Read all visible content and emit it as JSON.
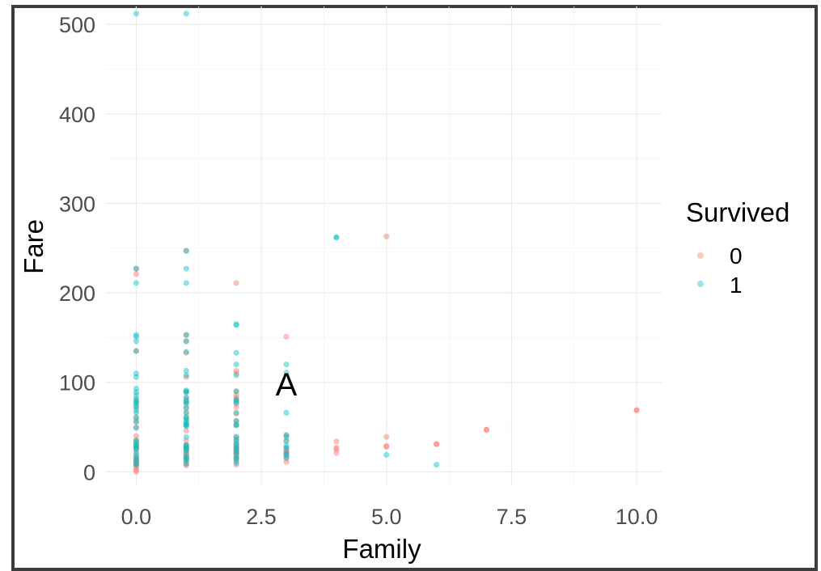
{
  "chart_data": {
    "type": "scatter",
    "xlabel": "Family",
    "ylabel": "Fare",
    "xlim": [
      -0.75,
      10.5
    ],
    "ylim": [
      -15,
      520
    ],
    "x_ticks": [
      0.0,
      2.5,
      5.0,
      7.5,
      10.0
    ],
    "x_tick_labels": [
      "0.0",
      "2.5",
      "5.0",
      "7.5",
      "10.0"
    ],
    "y_ticks": [
      0,
      100,
      200,
      300,
      400,
      500
    ],
    "y_tick_labels": [
      "0",
      "100",
      "200",
      "300",
      "400",
      "500"
    ],
    "grid": true,
    "legend": {
      "title": "Survived",
      "placement": "right",
      "entries": [
        "0",
        "1"
      ]
    },
    "colors": {
      "0": "#F8766D",
      "1": "#00BFC4"
    },
    "annotation": {
      "text": "A",
      "x": 3.0,
      "y": 98
    },
    "series": [
      {
        "name": "0",
        "points": [
          [
            0,
            0
          ],
          [
            0,
            2
          ],
          [
            0,
            5
          ],
          [
            0,
            7
          ],
          [
            0,
            8
          ],
          [
            0,
            10
          ],
          [
            0,
            12
          ],
          [
            0,
            14
          ],
          [
            0,
            16
          ],
          [
            0,
            20
          ],
          [
            0,
            25
          ],
          [
            0,
            28
          ],
          [
            0,
            31
          ],
          [
            0,
            35
          ],
          [
            0,
            40
          ],
          [
            0,
            50
          ],
          [
            0,
            56
          ],
          [
            0,
            61
          ],
          [
            0,
            73
          ],
          [
            0,
            80
          ],
          [
            0,
            135
          ],
          [
            0,
            221
          ],
          [
            0,
            227
          ],
          [
            1,
            7
          ],
          [
            1,
            9
          ],
          [
            1,
            12
          ],
          [
            1,
            14
          ],
          [
            1,
            16
          ],
          [
            1,
            18
          ],
          [
            1,
            20
          ],
          [
            1,
            22
          ],
          [
            1,
            24
          ],
          [
            1,
            26
          ],
          [
            1,
            27
          ],
          [
            1,
            30
          ],
          [
            1,
            35
          ],
          [
            1,
            46
          ],
          [
            1,
            53
          ],
          [
            1,
            61
          ],
          [
            1,
            66
          ],
          [
            1,
            72
          ],
          [
            1,
            78
          ],
          [
            1,
            83
          ],
          [
            1,
            89
          ],
          [
            1,
            106
          ],
          [
            1,
            133
          ],
          [
            1,
            146
          ],
          [
            1,
            153
          ],
          [
            1,
            247
          ],
          [
            2,
            8
          ],
          [
            2,
            12
          ],
          [
            2,
            15
          ],
          [
            2,
            18
          ],
          [
            2,
            20
          ],
          [
            2,
            21
          ],
          [
            2,
            23
          ],
          [
            2,
            24
          ],
          [
            2,
            26
          ],
          [
            2,
            29
          ],
          [
            2,
            31
          ],
          [
            2,
            35
          ],
          [
            2,
            39
          ],
          [
            2,
            52
          ],
          [
            2,
            57
          ],
          [
            2,
            65
          ],
          [
            2,
            72
          ],
          [
            2,
            76
          ],
          [
            2,
            80
          ],
          [
            2,
            83
          ],
          [
            2,
            86
          ],
          [
            2,
            90
          ],
          [
            2,
            110
          ],
          [
            2,
            113
          ],
          [
            2,
            211
          ],
          [
            3,
            11
          ],
          [
            3,
            15
          ],
          [
            3,
            18
          ],
          [
            3,
            21
          ],
          [
            3,
            22
          ],
          [
            3,
            24
          ],
          [
            3,
            26
          ],
          [
            3,
            35
          ],
          [
            3,
            41
          ],
          [
            3,
            151
          ],
          [
            4,
            21
          ],
          [
            4,
            25
          ],
          [
            4,
            27
          ],
          [
            4,
            34
          ],
          [
            5,
            28
          ],
          [
            5,
            29
          ],
          [
            5,
            39
          ],
          [
            5,
            263
          ],
          [
            6,
            31
          ],
          [
            6,
            31
          ],
          [
            7,
            47
          ],
          [
            7,
            47
          ],
          [
            10,
            69
          ],
          [
            10,
            69
          ]
        ]
      },
      {
        "name": "1",
        "points": [
          [
            0,
            8
          ],
          [
            0,
            10
          ],
          [
            0,
            13
          ],
          [
            0,
            15
          ],
          [
            0,
            18
          ],
          [
            0,
            22
          ],
          [
            0,
            26
          ],
          [
            0,
            27
          ],
          [
            0,
            29
          ],
          [
            0,
            30
          ],
          [
            0,
            33
          ],
          [
            0,
            35
          ],
          [
            0,
            49
          ],
          [
            0,
            56
          ],
          [
            0,
            60
          ],
          [
            0,
            66
          ],
          [
            0,
            69
          ],
          [
            0,
            72
          ],
          [
            0,
            76
          ],
          [
            0,
            77
          ],
          [
            0,
            79
          ],
          [
            0,
            82
          ],
          [
            0,
            86
          ],
          [
            0,
            89
          ],
          [
            0,
            93
          ],
          [
            0,
            106
          ],
          [
            0,
            110
          ],
          [
            0,
            135
          ],
          [
            0,
            146
          ],
          [
            0,
            151
          ],
          [
            0,
            153
          ],
          [
            0,
            211
          ],
          [
            0,
            227
          ],
          [
            0,
            512
          ],
          [
            1,
            9
          ],
          [
            1,
            13
          ],
          [
            1,
            15
          ],
          [
            1,
            16
          ],
          [
            1,
            20
          ],
          [
            1,
            24
          ],
          [
            1,
            26
          ],
          [
            1,
            27
          ],
          [
            1,
            29
          ],
          [
            1,
            30
          ],
          [
            1,
            39
          ],
          [
            1,
            51
          ],
          [
            1,
            52
          ],
          [
            1,
            53
          ],
          [
            1,
            55
          ],
          [
            1,
            57
          ],
          [
            1,
            59
          ],
          [
            1,
            61
          ],
          [
            1,
            66
          ],
          [
            1,
            71
          ],
          [
            1,
            76
          ],
          [
            1,
            78
          ],
          [
            1,
            80
          ],
          [
            1,
            83
          ],
          [
            1,
            89
          ],
          [
            1,
            90
          ],
          [
            1,
            91
          ],
          [
            1,
            108
          ],
          [
            1,
            113
          ],
          [
            1,
            134
          ],
          [
            1,
            146
          ],
          [
            1,
            153
          ],
          [
            1,
            211
          ],
          [
            1,
            227
          ],
          [
            1,
            247
          ],
          [
            1,
            512
          ],
          [
            2,
            10
          ],
          [
            2,
            14
          ],
          [
            2,
            16
          ],
          [
            2,
            20
          ],
          [
            2,
            23
          ],
          [
            2,
            26
          ],
          [
            2,
            27
          ],
          [
            2,
            30
          ],
          [
            2,
            33
          ],
          [
            2,
            36
          ],
          [
            2,
            39
          ],
          [
            2,
            52
          ],
          [
            2,
            53
          ],
          [
            2,
            57
          ],
          [
            2,
            66
          ],
          [
            2,
            77
          ],
          [
            2,
            79
          ],
          [
            2,
            81
          ],
          [
            2,
            90
          ],
          [
            2,
            108
          ],
          [
            2,
            120
          ],
          [
            2,
            133
          ],
          [
            2,
            164
          ],
          [
            2,
            165
          ],
          [
            3,
            16
          ],
          [
            3,
            19
          ],
          [
            3,
            21
          ],
          [
            3,
            27
          ],
          [
            3,
            29
          ],
          [
            3,
            34
          ],
          [
            3,
            39
          ],
          [
            3,
            41
          ],
          [
            3,
            66
          ],
          [
            3,
            111
          ],
          [
            3,
            120
          ],
          [
            4,
            262
          ],
          [
            4,
            262
          ],
          [
            5,
            19
          ],
          [
            6,
            8
          ]
        ]
      }
    ]
  }
}
